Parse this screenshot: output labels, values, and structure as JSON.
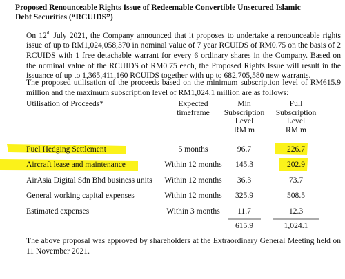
{
  "title": "Proposed Renounceable Rights Issue of Redeemable Convertible Unsecured Islamic Debt Securities (“RCUIDS”)",
  "paragraph1": {
    "before": "On 12",
    "superscript": "th",
    "after": " July 2021, the Company announced that it proposes to undertake a renounceable rights issue of up to RM1,024,058,370 in nominal value of 7 year RCUIDS of RM0.75 on the basis of 2 RCUIDS with 1 free detachable warrant for every 6 ordinary shares in the Company. Based on the nominal value of the RCUIDS of RM0.75 each, the Proposed Rights Issue will result in the issuance of up to 1,365,411,160 RCUIDS together with up to 682,705,580 new warrants."
  },
  "paragraph2": "The proposed utilisation of the proceeds based on the minimum subscription level of RM615.9 million and the maximum subscription level of RM1,024.1 million are as follows:",
  "table": {
    "header": [
      [
        "Utilisation of Proceeds*"
      ],
      [
        "Expected",
        "timeframe"
      ],
      [
        "Min",
        "Subscription",
        "Level",
        "RM m"
      ],
      [
        "Full",
        "Subscription",
        "Level",
        "RM m"
      ]
    ],
    "rows": [
      [
        "Fuel Hedging Settlement",
        "5 months",
        "96.7",
        "226.7"
      ],
      [
        "Aircraft lease and maintenance",
        "Within 12 months",
        "145.3",
        "202.9"
      ],
      [
        "AirAsia Digital Sdn Bhd business units",
        "Within 12 months",
        "36.3",
        "73.7"
      ],
      [
        "General working capital expenses",
        "Within 12 months",
        "325.9",
        "508.5"
      ],
      [
        "Estimated expenses",
        "Within 3 months",
        "11.7",
        "12.3"
      ]
    ],
    "totals": [
      "615.9",
      "1,024.1"
    ]
  },
  "footer": "The above proposal was approved by shareholders at the Extraordinary General Meeting held on 11 November 2021."
}
